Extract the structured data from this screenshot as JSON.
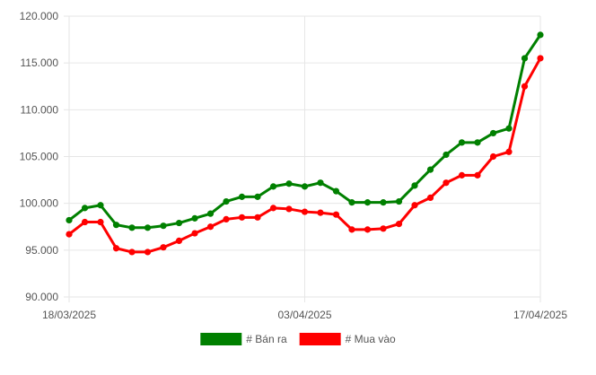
{
  "chart_data": {
    "type": "line",
    "x": [
      "18/03/2025",
      "",
      "",
      "",
      "",
      "",
      "",
      "",
      "",
      "",
      "",
      "",
      "",
      "",
      "",
      "03/04/2025",
      "",
      "",
      "",
      "",
      "",
      "",
      "",
      "",
      "",
      "",
      "",
      "",
      "",
      "",
      "17/04/2025"
    ],
    "x_tick_labels": [
      "18/03/2025",
      "03/04/2025",
      "17/04/2025"
    ],
    "y_tick_labels": [
      "90.000",
      "95.000",
      "100.000",
      "105.000",
      "110.000",
      "115.000",
      "120.000"
    ],
    "ylim": [
      90000,
      120000
    ],
    "grid": true,
    "legend_position": "bottom",
    "series": [
      {
        "name": "# Bán ra",
        "color": "#008000",
        "values": [
          98200,
          99500,
          99800,
          97700,
          97400,
          97400,
          97600,
          97900,
          98400,
          98900,
          100200,
          100700,
          100700,
          101800,
          102100,
          101800,
          102200,
          101300,
          100100,
          100100,
          100100,
          100200,
          101900,
          103600,
          105200,
          106500,
          106500,
          107500,
          108000,
          115500,
          118000
        ]
      },
      {
        "name": "# Mua vào",
        "color": "#ff0000",
        "values": [
          96700,
          98000,
          98000,
          95200,
          94800,
          94800,
          95300,
          96000,
          96800,
          97500,
          98300,
          98500,
          98500,
          99500,
          99400,
          99100,
          99000,
          98800,
          97200,
          97200,
          97300,
          97800,
          99800,
          100600,
          102200,
          103000,
          103000,
          105000,
          105500,
          112500,
          115500
        ]
      }
    ]
  }
}
